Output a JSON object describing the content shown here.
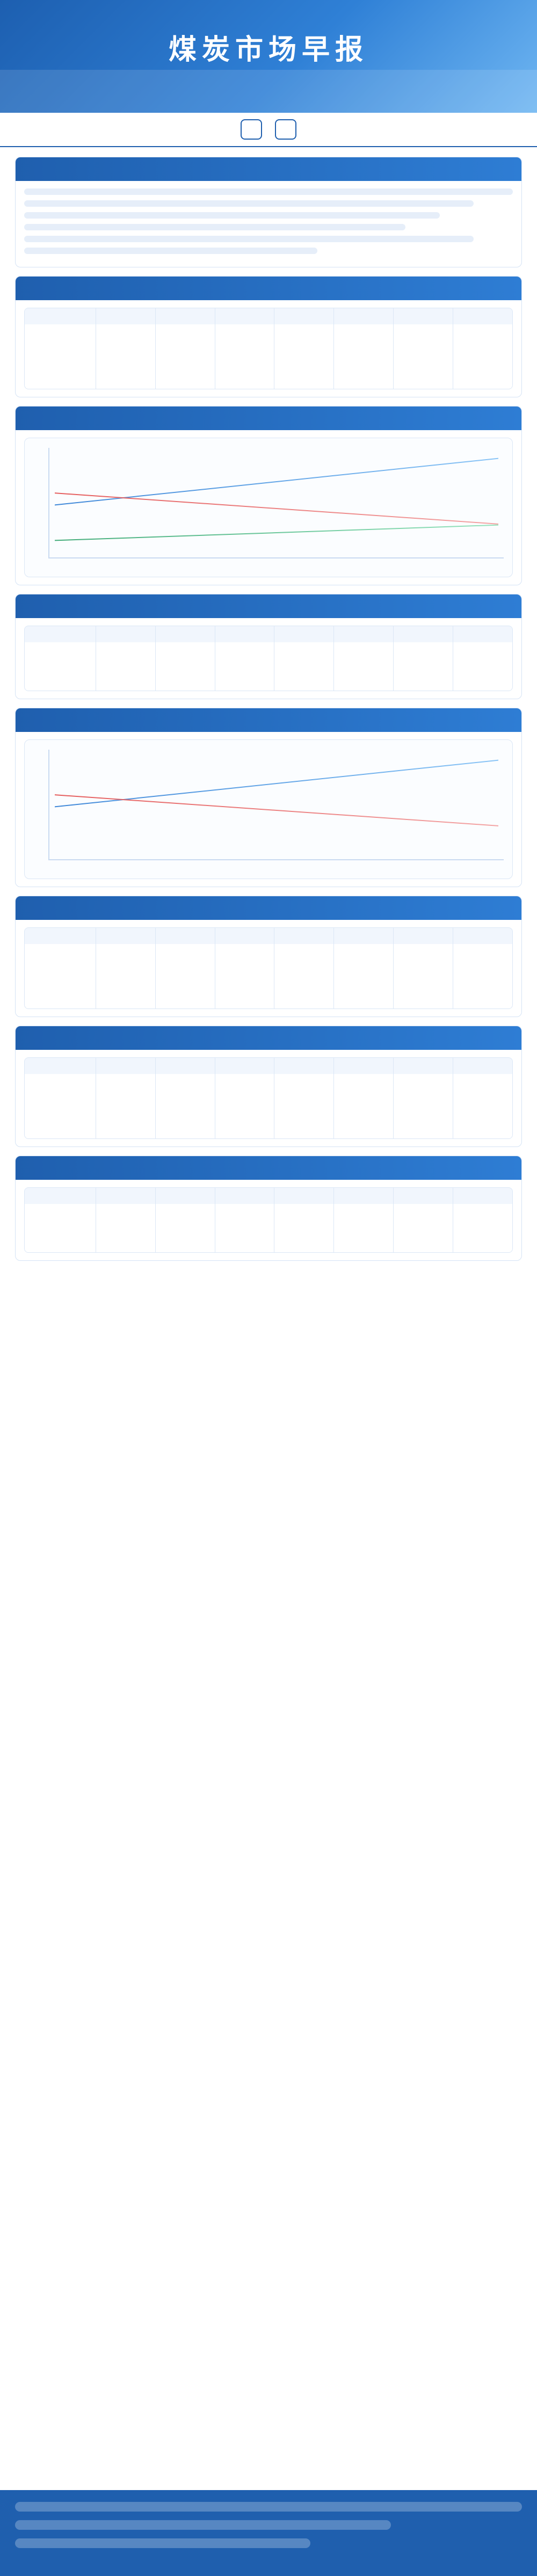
{
  "header": {
    "title": "煤炭市场早报"
  }
}
